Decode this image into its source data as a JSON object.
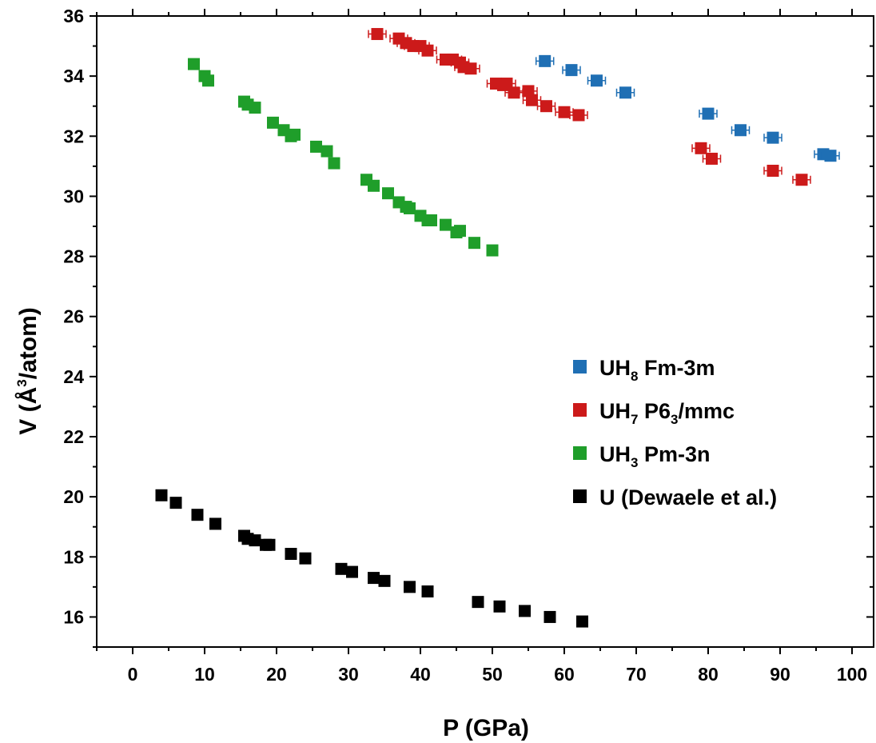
{
  "chart_data": {
    "type": "scatter",
    "xlabel": "P (GPa)",
    "ylabel_parts": [
      "V (",
      "Å",
      "3",
      "/atom)"
    ],
    "xlim": [
      -5,
      103
    ],
    "ylim": [
      15,
      36
    ],
    "xticks": [
      "0",
      "10",
      "20",
      "30",
      "40",
      "50",
      "60",
      "70",
      "80",
      "90",
      "100"
    ],
    "yticks": [
      "16",
      "18",
      "20",
      "22",
      "24",
      "26",
      "28",
      "30",
      "32",
      "34",
      "36"
    ],
    "legend_position": "center-right",
    "series": [
      {
        "name_parts": [
          "UH",
          "8",
          " Fm-3m"
        ],
        "color": "#1f6fb4",
        "error_bars": true,
        "points": [
          [
            57.3,
            34.5
          ],
          [
            61.0,
            34.2
          ],
          [
            64.5,
            33.85
          ],
          [
            68.5,
            33.45
          ],
          [
            80.0,
            32.75
          ],
          [
            84.5,
            32.2
          ],
          [
            89.0,
            31.95
          ],
          [
            96.0,
            31.4
          ],
          [
            97.0,
            31.35
          ]
        ]
      },
      {
        "name_parts": [
          "UH",
          "7",
          " P6",
          "3",
          "/mmc"
        ],
        "color": "#cc1a1a",
        "error_bars": true,
        "points": [
          [
            34.0,
            35.4
          ],
          [
            37.0,
            35.25
          ],
          [
            38.0,
            35.1
          ],
          [
            39.0,
            35.0
          ],
          [
            40.0,
            35.0
          ],
          [
            41.0,
            34.85
          ],
          [
            43.5,
            34.55
          ],
          [
            44.5,
            34.55
          ],
          [
            45.5,
            34.45
          ],
          [
            46.0,
            34.3
          ],
          [
            47.0,
            34.25
          ],
          [
            50.5,
            33.75
          ],
          [
            51.5,
            33.7
          ],
          [
            52.0,
            33.75
          ],
          [
            53.0,
            33.45
          ],
          [
            55.0,
            33.5
          ],
          [
            55.5,
            33.2
          ],
          [
            57.5,
            33.0
          ],
          [
            60.0,
            32.8
          ],
          [
            62.0,
            32.7
          ],
          [
            79.0,
            31.6
          ],
          [
            80.5,
            31.25
          ],
          [
            89.0,
            30.85
          ],
          [
            93.0,
            30.55
          ]
        ]
      },
      {
        "name_parts": [
          "UH",
          "3",
          " Pm-3n"
        ],
        "color": "#1f9e2a",
        "error_bars": false,
        "points": [
          [
            8.5,
            34.4
          ],
          [
            10.0,
            34.0
          ],
          [
            10.5,
            33.85
          ],
          [
            15.5,
            33.15
          ],
          [
            16.0,
            33.05
          ],
          [
            17.0,
            32.95
          ],
          [
            19.5,
            32.45
          ],
          [
            21.0,
            32.2
          ],
          [
            22.0,
            32.0
          ],
          [
            22.5,
            32.05
          ],
          [
            25.5,
            31.65
          ],
          [
            27.0,
            31.5
          ],
          [
            28.0,
            31.1
          ],
          [
            32.5,
            30.55
          ],
          [
            33.5,
            30.35
          ],
          [
            35.5,
            30.1
          ],
          [
            37.0,
            29.8
          ],
          [
            38.0,
            29.65
          ],
          [
            38.5,
            29.6
          ],
          [
            40.0,
            29.35
          ],
          [
            41.0,
            29.2
          ],
          [
            41.5,
            29.2
          ],
          [
            43.5,
            29.05
          ],
          [
            45.0,
            28.8
          ],
          [
            45.5,
            28.85
          ],
          [
            47.5,
            28.45
          ],
          [
            50.0,
            28.2
          ]
        ]
      },
      {
        "name_parts": [
          "U (Dewaele et al.)"
        ],
        "color": "#000000",
        "error_bars": false,
        "points": [
          [
            4.0,
            20.05
          ],
          [
            6.0,
            19.8
          ],
          [
            9.0,
            19.4
          ],
          [
            11.5,
            19.1
          ],
          [
            15.5,
            18.7
          ],
          [
            16.0,
            18.6
          ],
          [
            17.0,
            18.55
          ],
          [
            18.5,
            18.4
          ],
          [
            19.0,
            18.4
          ],
          [
            22.0,
            18.1
          ],
          [
            24.0,
            17.95
          ],
          [
            29.0,
            17.6
          ],
          [
            30.5,
            17.5
          ],
          [
            33.5,
            17.3
          ],
          [
            35.0,
            17.2
          ],
          [
            38.5,
            17.0
          ],
          [
            41.0,
            16.85
          ],
          [
            48.0,
            16.5
          ],
          [
            51.0,
            16.35
          ],
          [
            54.5,
            16.2
          ],
          [
            58.0,
            16.0
          ],
          [
            62.5,
            15.85
          ]
        ]
      }
    ]
  }
}
